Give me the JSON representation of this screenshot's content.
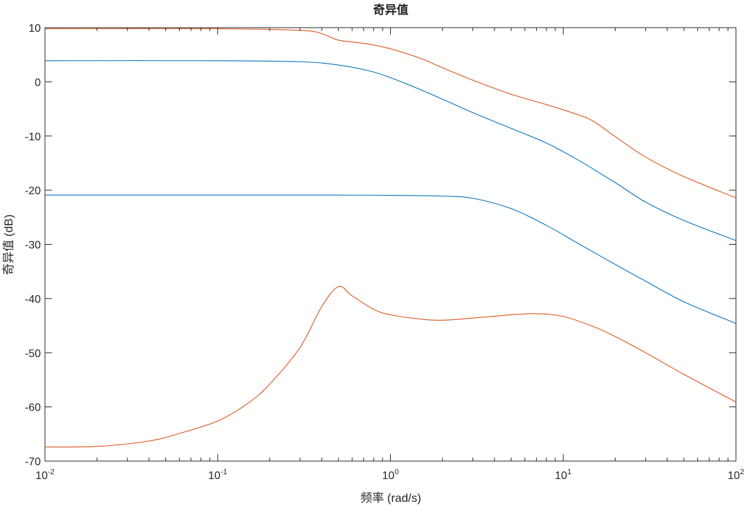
{
  "chart_data": {
    "type": "line",
    "title": "奇异值",
    "xlabel": "频率 (rad/s)",
    "ylabel": "奇异值 (dB)",
    "x_scale": "log",
    "xlim": [
      0.01,
      100
    ],
    "ylim": [
      -70,
      10
    ],
    "x_ticks": [
      {
        "value": 0.01,
        "base": "10",
        "exp": "-2"
      },
      {
        "value": 0.1,
        "base": "10",
        "exp": "-1"
      },
      {
        "value": 1,
        "base": "10",
        "exp": "0"
      },
      {
        "value": 10,
        "base": "10",
        "exp": "1"
      },
      {
        "value": 100,
        "base": "10",
        "exp": "2"
      }
    ],
    "y_ticks": [
      10,
      0,
      -10,
      -20,
      -30,
      -40,
      -50,
      -60,
      -70
    ],
    "grid": false,
    "box": true,
    "series": [
      {
        "color": "#0072BD",
        "points": [
          [
            0.01,
            3.9
          ],
          [
            0.1,
            3.9
          ],
          [
            0.3,
            3.7
          ],
          [
            0.5,
            3.1
          ],
          [
            0.8,
            1.8
          ],
          [
            1.2,
            -0.2
          ],
          [
            2,
            -3.2
          ],
          [
            3,
            -5.7
          ],
          [
            5,
            -8.6
          ],
          [
            8,
            -11.3
          ],
          [
            12,
            -14.3
          ],
          [
            20,
            -18.6
          ],
          [
            30,
            -22.2
          ],
          [
            50,
            -25.6
          ],
          [
            100,
            -29.3
          ]
        ]
      },
      {
        "color": "#0072BD",
        "points": [
          [
            0.01,
            -20.9
          ],
          [
            0.1,
            -20.9
          ],
          [
            0.5,
            -20.9
          ],
          [
            1,
            -20.95
          ],
          [
            2,
            -21.1
          ],
          [
            3,
            -21.5
          ],
          [
            5,
            -23.4
          ],
          [
            8,
            -26.5
          ],
          [
            12,
            -29.7
          ],
          [
            20,
            -33.7
          ],
          [
            30,
            -36.8
          ],
          [
            50,
            -40.6
          ],
          [
            100,
            -44.6
          ]
        ]
      },
      {
        "color": "#D95319",
        "points": [
          [
            0.01,
            9.8
          ],
          [
            0.1,
            9.8
          ],
          [
            0.3,
            9.5
          ],
          [
            0.4,
            8.9
          ],
          [
            0.5,
            7.7
          ],
          [
            0.7,
            7.1
          ],
          [
            1,
            6.1
          ],
          [
            1.5,
            4.3
          ],
          [
            2,
            2.6
          ],
          [
            3,
            0.3
          ],
          [
            5,
            -2.3
          ],
          [
            8,
            -4.2
          ],
          [
            12,
            -6.0
          ],
          [
            15,
            -7.3
          ],
          [
            20,
            -10.1
          ],
          [
            30,
            -13.9
          ],
          [
            50,
            -17.5
          ],
          [
            100,
            -21.4
          ]
        ]
      },
      {
        "color": "#D95319",
        "points": [
          [
            0.01,
            -67.4
          ],
          [
            0.02,
            -67.3
          ],
          [
            0.04,
            -66.3
          ],
          [
            0.06,
            -64.9
          ],
          [
            0.1,
            -62.6
          ],
          [
            0.15,
            -59.3
          ],
          [
            0.2,
            -55.8
          ],
          [
            0.3,
            -49.0
          ],
          [
            0.4,
            -41.5
          ],
          [
            0.5,
            -37.8
          ],
          [
            0.6,
            -39.5
          ],
          [
            0.8,
            -42.0
          ],
          [
            1,
            -43.0
          ],
          [
            1.5,
            -43.8
          ],
          [
            2,
            -44.0
          ],
          [
            3,
            -43.6
          ],
          [
            5,
            -43.0
          ],
          [
            7,
            -42.8
          ],
          [
            10,
            -43.3
          ],
          [
            15,
            -45.2
          ],
          [
            20,
            -47.0
          ],
          [
            30,
            -50.0
          ],
          [
            50,
            -54.0
          ],
          [
            100,
            -59.1
          ]
        ]
      }
    ]
  }
}
